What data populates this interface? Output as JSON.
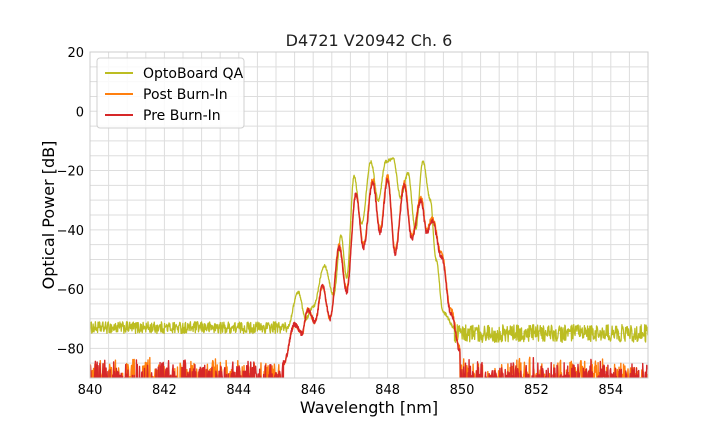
{
  "chart_data": {
    "type": "line",
    "title": "D4721 V20942 Ch. 6",
    "xlabel": "Wavelength [nm]",
    "ylabel": "Optical Power [dB]",
    "xlim": [
      840,
      855
    ],
    "ylim": [
      -90,
      20
    ],
    "xticks": [
      840,
      842,
      844,
      846,
      848,
      850,
      852,
      854
    ],
    "yticks": [
      20,
      0,
      -20,
      -40,
      -60,
      -80
    ],
    "xtick_labels": [
      "840",
      "842",
      "844",
      "846",
      "848",
      "850",
      "852",
      "854"
    ],
    "ytick_labels": [
      "20",
      "0",
      "−20",
      "−40",
      "−60",
      "−80"
    ],
    "grid": true,
    "legend_position": "top-left",
    "noise_floor_db": -90,
    "series": [
      {
        "name": "OptoBoard QA",
        "color": "#bcbd22",
        "noise_ranges": [
          [
            840.0,
            845.3,
            -73,
            2
          ],
          [
            849.8,
            855.0,
            -75,
            3
          ]
        ],
        "envelope": [
          [
            845.3,
            -73
          ],
          [
            845.6,
            -61
          ],
          [
            845.8,
            -70
          ],
          [
            846.0,
            -66
          ],
          [
            846.3,
            -52
          ],
          [
            846.55,
            -62
          ],
          [
            846.75,
            -42
          ],
          [
            846.9,
            -56
          ],
          [
            847.1,
            -22
          ],
          [
            847.3,
            -38
          ],
          [
            847.55,
            -17
          ],
          [
            847.75,
            -30
          ],
          [
            847.95,
            -17
          ],
          [
            848.15,
            -16
          ],
          [
            848.35,
            -29
          ],
          [
            848.55,
            -21
          ],
          [
            848.75,
            -40
          ],
          [
            848.95,
            -17
          ],
          [
            849.15,
            -30
          ],
          [
            849.3,
            -50
          ],
          [
            849.5,
            -68
          ],
          [
            849.8,
            -73
          ]
        ]
      },
      {
        "name": "Post Burn-In",
        "color": "#ff7f0e",
        "noise_ranges": [
          [
            840.0,
            845.2,
            -82,
            8
          ],
          [
            849.95,
            855.0,
            -82,
            8
          ]
        ],
        "envelope": [
          [
            845.2,
            -85
          ],
          [
            845.5,
            -72
          ],
          [
            845.7,
            -75
          ],
          [
            845.85,
            -67
          ],
          [
            846.05,
            -71
          ],
          [
            846.25,
            -59
          ],
          [
            846.45,
            -70
          ],
          [
            846.7,
            -45
          ],
          [
            846.9,
            -60
          ],
          [
            847.15,
            -28
          ],
          [
            847.35,
            -45
          ],
          [
            847.6,
            -23
          ],
          [
            847.8,
            -40
          ],
          [
            848.0,
            -22
          ],
          [
            848.2,
            -47
          ],
          [
            848.45,
            -24
          ],
          [
            848.65,
            -42
          ],
          [
            848.9,
            -29
          ],
          [
            849.05,
            -40
          ],
          [
            849.2,
            -36
          ],
          [
            849.45,
            -48
          ],
          [
            849.7,
            -67
          ],
          [
            849.95,
            -80
          ]
        ]
      },
      {
        "name": "Pre Burn-In",
        "color": "#d62728",
        "noise_ranges": [
          [
            840.0,
            845.2,
            -82,
            8
          ],
          [
            849.95,
            855.0,
            -82,
            8
          ]
        ],
        "envelope": [
          [
            845.2,
            -85
          ],
          [
            845.5,
            -72
          ],
          [
            845.7,
            -75
          ],
          [
            845.85,
            -67
          ],
          [
            846.05,
            -71
          ],
          [
            846.25,
            -59
          ],
          [
            846.45,
            -70
          ],
          [
            846.7,
            -46
          ],
          [
            846.9,
            -61
          ],
          [
            847.15,
            -28
          ],
          [
            847.35,
            -46
          ],
          [
            847.6,
            -24
          ],
          [
            847.8,
            -41
          ],
          [
            848.0,
            -23
          ],
          [
            848.2,
            -48
          ],
          [
            848.45,
            -25
          ],
          [
            848.65,
            -43
          ],
          [
            848.9,
            -30
          ],
          [
            849.05,
            -41
          ],
          [
            849.2,
            -37
          ],
          [
            849.45,
            -49
          ],
          [
            849.7,
            -68
          ],
          [
            849.95,
            -81
          ]
        ]
      }
    ]
  }
}
